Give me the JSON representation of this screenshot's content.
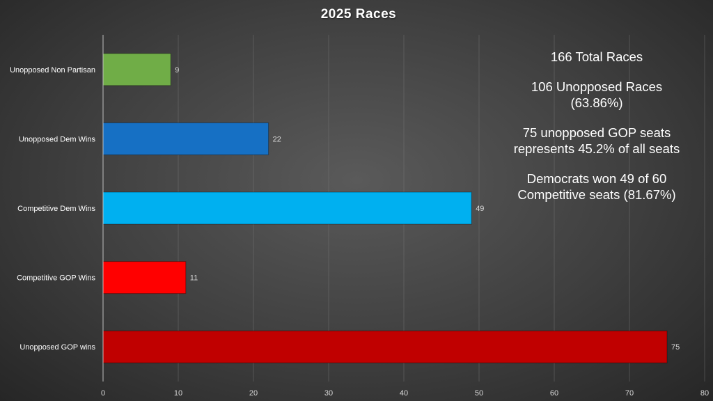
{
  "chart_data": {
    "type": "bar",
    "orientation": "horizontal",
    "title": "2025 Races",
    "categories": [
      "Unopposed Non Partisan",
      "Unopposed Dem Wins",
      "Competitive Dem Wins",
      "Competitive GOP Wins",
      "Unopposed GOP wins"
    ],
    "values": [
      9,
      22,
      49,
      11,
      75
    ],
    "colors": [
      "#70ad47",
      "#1670c4",
      "#00b0f0",
      "#ff0000",
      "#c00000"
    ],
    "xlim": [
      0,
      80
    ],
    "xticks": [
      0,
      10,
      20,
      30,
      40,
      50,
      60,
      70,
      80
    ],
    "grid": true,
    "legend": "none",
    "data_labels": true,
    "annotations": [
      "166 Total Races",
      "106 Unopposed Races\n(63.86%)",
      "75 unopposed GOP seats\nrepresents 45.2% of all seats",
      "Democrats won 49 of 60\nCompetitive seats (81.67%)"
    ]
  }
}
